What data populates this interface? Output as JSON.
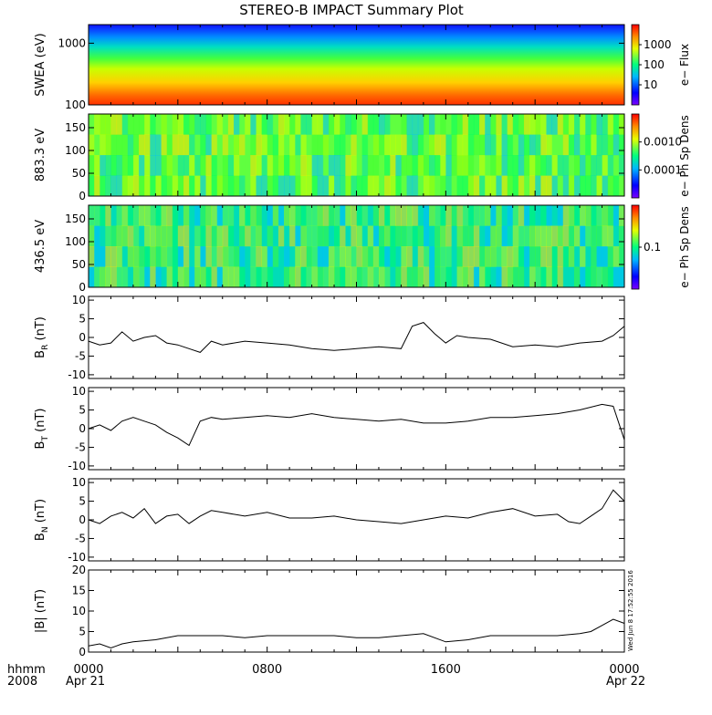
{
  "title": "STEREO-B IMPACT Summary Plot",
  "footer": {
    "label_top": "hhmm",
    "label_bottom": "2008",
    "date_start": "Apr 21",
    "date_end": "Apr 22"
  },
  "timestamp": "Wed Jun 8 17:52:55 2016",
  "x_ticks": [
    "0000",
    "0800",
    "1600",
    "0000"
  ],
  "chart_data": [
    {
      "type": "heatmap",
      "ylabel": "SWEA (eV)",
      "yscale": "log",
      "ylim": [
        100,
        2000
      ],
      "yticks": [
        "100",
        "1000"
      ],
      "colorbar": {
        "label": "e− Flux",
        "scale": "log",
        "ticks": [
          "10",
          "100",
          "1000"
        ]
      }
    },
    {
      "type": "heatmap",
      "ylabel": "883.3 eV",
      "ylim": [
        0,
        180
      ],
      "yticks": [
        "0",
        "50",
        "100",
        "150"
      ],
      "colorbar": {
        "label": "e− Ph Sp Dens",
        "scale": "log",
        "ticks": [
          "0.0001",
          "0.0010"
        ]
      }
    },
    {
      "type": "heatmap",
      "ylabel": "436.5 eV",
      "ylim": [
        0,
        180
      ],
      "yticks": [
        "0",
        "50",
        "100",
        "150"
      ],
      "colorbar": {
        "label": "e− Ph Sp Dens",
        "scale": "log",
        "ticks": [
          "0.1"
        ]
      }
    },
    {
      "type": "line",
      "ylabel": "B",
      "ylabel_sub": "R",
      "ylabel_unit": " (nT)",
      "ylim": [
        -11,
        11
      ],
      "yticks": [
        "-10",
        "-5",
        "0",
        "5",
        "10"
      ],
      "x_hours": [
        0,
        0.5,
        1,
        1.5,
        2,
        2.5,
        3,
        3.5,
        4,
        4.5,
        5,
        5.5,
        6,
        7,
        8,
        9,
        10,
        11,
        12,
        13,
        14,
        14.5,
        15,
        15.5,
        16,
        16.5,
        17,
        18,
        19,
        20,
        21,
        22,
        23,
        23.5,
        24
      ],
      "values": [
        -1,
        -2,
        -1.5,
        1.5,
        -1,
        0,
        0.5,
        -1.5,
        -2,
        -3,
        -4,
        -1,
        -2,
        -1,
        -1.5,
        -2,
        -3,
        -3.5,
        -3,
        -2.5,
        -3,
        3,
        4,
        1,
        -1.5,
        0.5,
        0,
        -0.5,
        -2.5,
        -2,
        -2.5,
        -1.5,
        -1,
        0.5,
        3
      ]
    },
    {
      "type": "line",
      "ylabel": "B",
      "ylabel_sub": "T",
      "ylabel_unit": " (nT)",
      "ylim": [
        -11,
        11
      ],
      "yticks": [
        "-10",
        "-5",
        "0",
        "5",
        "10"
      ],
      "x_hours": [
        0,
        0.5,
        1,
        1.5,
        2,
        2.5,
        3,
        3.5,
        4,
        4.5,
        5,
        5.5,
        6,
        7,
        8,
        9,
        10,
        11,
        12,
        13,
        14,
        15,
        16,
        17,
        18,
        19,
        20,
        21,
        22,
        23,
        23.5,
        24
      ],
      "values": [
        0,
        1,
        -0.5,
        2,
        3,
        2,
        1,
        -1,
        -2.5,
        -4.5,
        2,
        3,
        2.5,
        3,
        3.5,
        3,
        4,
        3,
        2.5,
        2,
        2.5,
        1.5,
        1.5,
        2,
        3,
        3,
        3.5,
        4,
        5,
        6.5,
        6,
        -3
      ]
    },
    {
      "type": "line",
      "ylabel": "B",
      "ylabel_sub": "N",
      "ylabel_unit": " (nT)",
      "ylim": [
        -11,
        11
      ],
      "yticks": [
        "-10",
        "-5",
        "0",
        "5",
        "10"
      ],
      "x_hours": [
        0,
        0.5,
        1,
        1.5,
        2,
        2.5,
        3,
        3.5,
        4,
        4.5,
        5,
        5.5,
        6,
        7,
        8,
        9,
        10,
        11,
        12,
        13,
        14,
        15,
        16,
        17,
        18,
        19,
        20,
        21,
        21.5,
        22,
        22.5,
        23,
        23.5,
        24
      ],
      "values": [
        0,
        -1,
        1,
        2,
        0.5,
        3,
        -1,
        1,
        1.5,
        -1,
        1,
        2.5,
        2,
        1,
        2,
        0.5,
        0.5,
        1,
        0,
        -0.5,
        -1,
        0,
        1,
        0.5,
        2,
        3,
        1,
        1.5,
        -0.5,
        -1,
        1,
        3,
        8,
        5
      ]
    },
    {
      "type": "line",
      "ylabel": "|B| (nT)",
      "ylim": [
        0,
        20
      ],
      "yticks": [
        "0",
        "5",
        "10",
        "15",
        "20"
      ],
      "x_hours": [
        0,
        0.5,
        1,
        1.5,
        2,
        3,
        4,
        5,
        6,
        7,
        8,
        9,
        10,
        11,
        12,
        13,
        14,
        15,
        16,
        17,
        18,
        19,
        20,
        21,
        22,
        22.5,
        23,
        23.5,
        24
      ],
      "values": [
        1.5,
        2,
        1,
        2,
        2.5,
        3,
        4,
        4,
        4,
        3.5,
        4,
        4,
        4,
        4,
        3.5,
        3.5,
        4,
        4.5,
        2.5,
        3,
        4,
        4,
        4,
        4,
        4.5,
        5,
        6.5,
        8,
        7
      ]
    }
  ]
}
